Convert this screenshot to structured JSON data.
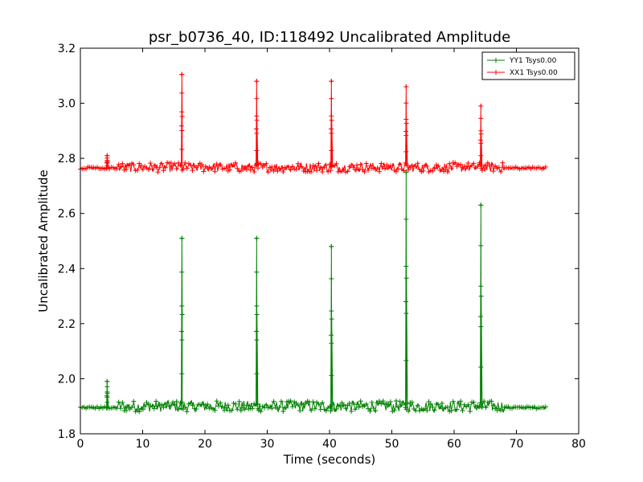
{
  "chart_data": {
    "type": "line",
    "title": "psr_b0736_40, ID:118492 Uncalibrated Amplitude",
    "xlabel": "Time (seconds)",
    "ylabel": "Uncalibrated Amplitude",
    "xlim": [
      0,
      80
    ],
    "ylim": [
      1.8,
      3.2
    ],
    "x_ticks": [
      "0",
      "10",
      "20",
      "30",
      "40",
      "50",
      "60",
      "70",
      "80"
    ],
    "y_ticks": [
      "1.8",
      "2.0",
      "2.2",
      "2.4",
      "2.6",
      "2.8",
      "3.0",
      "3.2"
    ],
    "grid": false,
    "legend_position": "top-right",
    "data_range_x": [
      0,
      74.8
    ],
    "series": [
      {
        "name": "YY1 Tsys0.00",
        "color": "#008000",
        "marker": "+",
        "baseline_level": 1.895,
        "noise_band_x": [
          6,
          68
        ],
        "noise_band": [
          1.88,
          1.92
        ],
        "spikes": [
          {
            "x": 4.3,
            "y": 1.99
          },
          {
            "x": 16.3,
            "y": 2.51
          },
          {
            "x": 28.3,
            "y": 2.51
          },
          {
            "x": 40.3,
            "y": 2.48
          },
          {
            "x": 52.3,
            "y": 2.75
          },
          {
            "x": 64.3,
            "y": 2.63
          }
        ]
      },
      {
        "name": "XX1 Tsys0.00",
        "color": "#ff0000",
        "marker": "+",
        "baseline_level": 2.765,
        "noise_band_x": [
          6,
          68
        ],
        "noise_band": [
          2.75,
          2.785
        ],
        "spikes": [
          {
            "x": 4.3,
            "y": 2.81
          },
          {
            "x": 16.3,
            "y": 3.105
          },
          {
            "x": 28.3,
            "y": 3.08
          },
          {
            "x": 40.3,
            "y": 3.08
          },
          {
            "x": 52.3,
            "y": 3.06
          },
          {
            "x": 64.3,
            "y": 2.99
          }
        ]
      }
    ]
  }
}
